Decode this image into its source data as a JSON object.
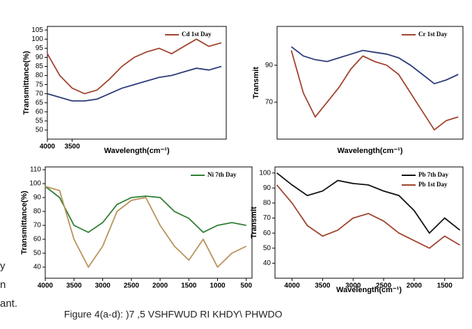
{
  "chart_data": [
    {
      "type": "line",
      "x_label": "Wavelength(cm⁻¹)",
      "y_label": "Transmittance(%)",
      "x": [
        4000,
        3750,
        3500,
        3250,
        3000,
        2750,
        2500,
        2250,
        2000,
        1750,
        1500,
        1250,
        1000,
        750,
        500
      ],
      "series": [
        {
          "name": "Cd 1st Day",
          "color": "#a0432e",
          "values": [
            92,
            80,
            73,
            70,
            72,
            78,
            85,
            90,
            93,
            95,
            92,
            96,
            100,
            96,
            98
          ]
        },
        {
          "color": "#2b3a7a",
          "values": [
            70,
            68,
            66,
            66,
            67,
            70,
            73,
            75,
            77,
            79,
            80,
            82,
            84,
            83,
            85
          ]
        }
      ],
      "xlim": [
        4000,
        400
      ],
      "xticks": [
        4000,
        3500
      ],
      "ylim": [
        45,
        107
      ],
      "yticks": [
        50,
        55,
        60,
        65,
        70,
        75,
        80,
        85,
        90,
        95,
        100,
        105
      ]
    },
    {
      "type": "line",
      "x_label": "Wavelength(cm⁻¹)",
      "y_label": "Transmit",
      "x": [
        4000,
        3750,
        3500,
        3250,
        3000,
        2750,
        2500,
        2250,
        2000,
        1750,
        1500,
        1250,
        1000,
        750,
        500
      ],
      "series": [
        {
          "name": "Cr 1st Day",
          "color": "#a0432e",
          "values": [
            98,
            75,
            62,
            70,
            78,
            88,
            95,
            92,
            90,
            85,
            75,
            65,
            55,
            60,
            62
          ]
        },
        {
          "color": "#2b3a7a",
          "values": [
            100,
            95,
            93,
            92,
            94,
            96,
            98,
            97,
            96,
            94,
            90,
            85,
            80,
            82,
            85
          ]
        }
      ],
      "xlim": [
        4300,
        400
      ],
      "ylim": [
        50,
        111
      ],
      "yticks": [
        70,
        90
      ]
    },
    {
      "type": "line",
      "x_label": "",
      "y_label": "Transmittance(%)",
      "x": [
        4000,
        3750,
        3500,
        3250,
        3000,
        2750,
        2500,
        2250,
        2000,
        1750,
        1500,
        1250,
        1000,
        750,
        500
      ],
      "series": [
        {
          "name": "Ni 7th Day",
          "color": "#2e7d32",
          "values": [
            98,
            90,
            70,
            65,
            72,
            85,
            90,
            91,
            90,
            80,
            75,
            65,
            70,
            72,
            70
          ]
        },
        {
          "color": "#b8925a",
          "values": [
            98,
            95,
            60,
            40,
            55,
            80,
            88,
            90,
            70,
            55,
            45,
            60,
            40,
            50,
            55
          ]
        }
      ],
      "xlim": [
        4000,
        400
      ],
      "xticks": [
        4000,
        3500,
        3000,
        2500,
        2000,
        1500,
        1000,
        500
      ],
      "ylim": [
        32,
        112
      ],
      "yticks": [
        40,
        50,
        60,
        70,
        80,
        90,
        100,
        110
      ]
    },
    {
      "type": "line",
      "x_label": "Wavelength(cm⁻¹)",
      "y_label": "Transmit",
      "x": [
        4250,
        4000,
        3750,
        3500,
        3250,
        3000,
        2750,
        2500,
        2250,
        2000,
        1750,
        1500,
        1250
      ],
      "series": [
        {
          "name": "Pb 7th Day",
          "color": "#111111",
          "values": [
            100,
            92,
            85,
            88,
            95,
            93,
            92,
            88,
            85,
            75,
            60,
            70,
            62
          ]
        },
        {
          "name": "Pb 1st Day",
          "color": "#a0432e",
          "values": [
            92,
            80,
            65,
            58,
            62,
            70,
            73,
            68,
            60,
            55,
            50,
            58,
            52
          ]
        }
      ],
      "xlim": [
        4280,
        1200
      ],
      "xticks": [
        4000,
        3500,
        3000,
        2500,
        2000,
        1500
      ],
      "ylim": [
        30,
        104
      ],
      "yticks": [
        40,
        50,
        60,
        70,
        80,
        90,
        100
      ]
    }
  ],
  "caption": "Figure 4(a-d): )7 ,5 VSHFWUD RI KHDY\\ PHWDO",
  "fragments": [
    "y",
    "n",
    "ant."
  ]
}
